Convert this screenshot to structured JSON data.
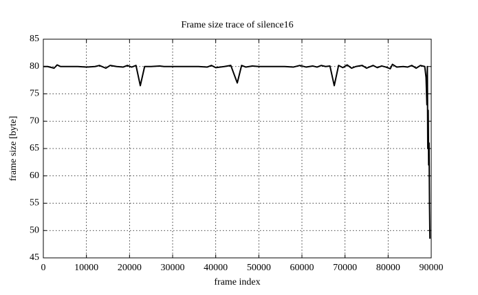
{
  "chart_data": {
    "type": "line",
    "title": "Frame size trace of silence16",
    "x_label": "frame index",
    "y_label": "frame size [byte]",
    "x": [
      0,
      1000,
      2500,
      3200,
      4000,
      6000,
      8000,
      10000,
      12000,
      13000,
      14500,
      15500,
      17000,
      18500,
      19500,
      20500,
      21500,
      22500,
      23500,
      25000,
      27000,
      28000,
      30000,
      32000,
      34000,
      36000,
      38000,
      39000,
      40000,
      42000,
      43500,
      45000,
      46000,
      47000,
      48500,
      50000,
      52000,
      54000,
      56000,
      58000,
      59500,
      61000,
      62500,
      63500,
      64500,
      65500,
      66500,
      67500,
      68500,
      69500,
      70500,
      71500,
      72500,
      74000,
      75000,
      76500,
      77500,
      78500,
      79500,
      80500,
      81000,
      82000,
      83500,
      84500,
      85500,
      86500,
      87500,
      88500,
      88800,
      89000,
      89100,
      89200,
      89300,
      89400,
      89500,
      89600,
      89700
    ],
    "series": [
      {
        "name": "silence16",
        "color": "#000000",
        "values": [
          80,
          80,
          79.7,
          80.3,
          80,
          80,
          80,
          79.9,
          80,
          80.2,
          79.7,
          80.2,
          80,
          79.9,
          80.2,
          79.9,
          80.2,
          76.5,
          80,
          80,
          80.1,
          80,
          80,
          80,
          80,
          80,
          79.9,
          80.2,
          79.8,
          80,
          80.2,
          77,
          80.2,
          79.9,
          80.1,
          80,
          80,
          80,
          80,
          79.9,
          80.2,
          79.9,
          80.1,
          79.9,
          80.2,
          80,
          80.1,
          76.5,
          80.2,
          79.8,
          80.3,
          79.7,
          80,
          80.2,
          79.7,
          80.2,
          79.8,
          80.1,
          79.9,
          79.6,
          80.4,
          79.9,
          80,
          79.9,
          80.2,
          79.7,
          80.2,
          80,
          78,
          73,
          80,
          65,
          72,
          62,
          66,
          55,
          48.5
        ]
      }
    ],
    "xlim": [
      0,
      90000
    ],
    "xticks": [
      0,
      10000,
      20000,
      30000,
      40000,
      50000,
      60000,
      70000,
      80000,
      90000
    ],
    "ylim": [
      45,
      85
    ],
    "yticks": [
      45,
      50,
      55,
      60,
      65,
      70,
      75,
      80,
      85
    ],
    "grid": true
  }
}
